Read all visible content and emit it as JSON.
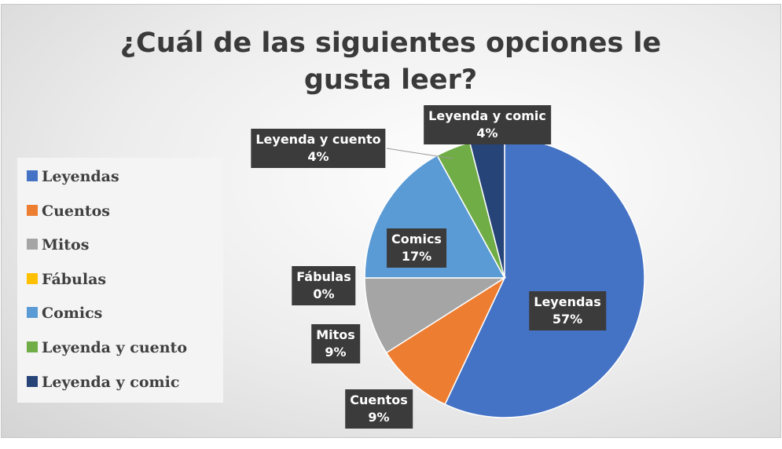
{
  "chart_data": {
    "type": "pie",
    "title": "¿Cuál de las siguientes opciones le gusta leer?",
    "categories": [
      "Leyendas",
      "Cuentos",
      "Mitos",
      "Fábulas",
      "Comics",
      "Leyenda y cuento",
      "Leyenda y comic"
    ],
    "values": [
      57,
      9,
      9,
      0,
      17,
      4,
      4
    ],
    "value_labels": [
      "57%",
      "9%",
      "9%",
      "0%",
      "17%",
      "4%",
      "4%"
    ],
    "colors": [
      "#4472c4",
      "#ed7d31",
      "#a5a5a5",
      "#ffc000",
      "#5b9bd5",
      "#70ad47",
      "#264478"
    ],
    "legend": "left"
  }
}
